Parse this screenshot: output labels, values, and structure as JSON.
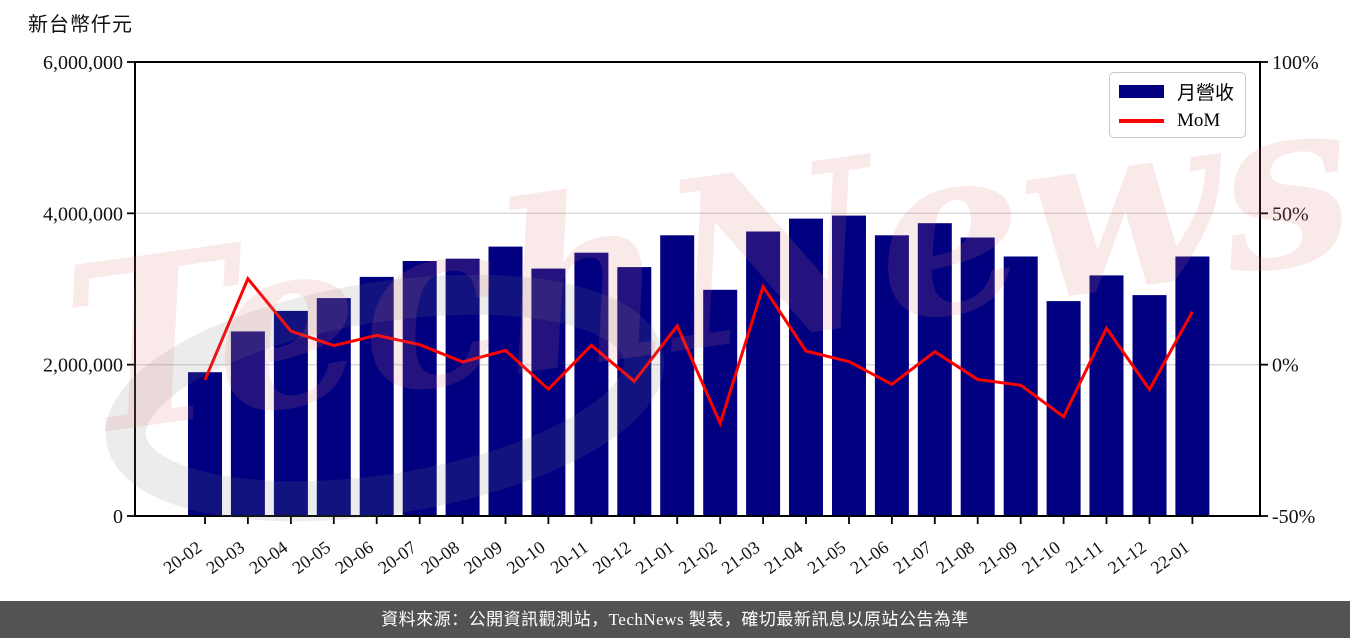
{
  "unit_label": "新台幣仟元",
  "legend": {
    "items": [
      {
        "label": "月營收",
        "type": "bar"
      },
      {
        "label": "MoM",
        "type": "line"
      }
    ]
  },
  "watermark": {
    "text": "TechNews"
  },
  "footer": {
    "source_text": "資料來源：公開資訊觀測站，TechNews 製表，確切最新訊息以原站公告為準"
  },
  "chart_data": {
    "type": "bar",
    "title": "",
    "categories": [
      "20-02",
      "20-03",
      "20-04",
      "20-05",
      "20-06",
      "20-07",
      "20-08",
      "20-09",
      "20-10",
      "20-11",
      "20-12",
      "21-01",
      "21-02",
      "21-03",
      "21-04",
      "21-05",
      "21-06",
      "21-07",
      "21-08",
      "21-09",
      "21-10",
      "21-11",
      "21-12",
      "22-01"
    ],
    "series": [
      {
        "name": "月營收",
        "type": "bar",
        "axis": "left",
        "color": "#000080",
        "values": [
          1900000,
          2440000,
          2710000,
          2880000,
          3160000,
          3370000,
          3400000,
          3560000,
          3270000,
          3480000,
          3290000,
          3710000,
          2990000,
          3760000,
          3930000,
          3970000,
          3710000,
          3870000,
          3680000,
          3430000,
          2840000,
          3180000,
          2920000,
          3430000
        ]
      },
      {
        "name": "MoM",
        "type": "line",
        "axis": "right",
        "color": "#ff0000",
        "unit": "%",
        "values": [
          -5.0,
          28.4,
          11.1,
          6.3,
          9.7,
          6.6,
          0.9,
          4.7,
          -8.1,
          6.4,
          -5.5,
          12.8,
          -19.4,
          25.8,
          4.5,
          1.0,
          -6.5,
          4.3,
          -4.9,
          -6.8,
          -17.2,
          12.0,
          -8.2,
          17.5
        ]
      }
    ],
    "left_axis": {
      "label": "新台幣仟元",
      "min": 0,
      "max": 6000000,
      "tick_values": [
        0,
        2000000,
        4000000,
        6000000
      ],
      "tick_labels": [
        "0",
        "2,000,000",
        "4,000,000",
        "6,000,000"
      ]
    },
    "right_axis": {
      "label": "",
      "min": -50,
      "max": 100,
      "tick_values": [
        -50,
        0,
        50,
        100
      ],
      "tick_labels": [
        "-50%",
        "0%",
        "50%",
        "100%"
      ]
    },
    "grid": true,
    "legend_position": "top-right"
  }
}
